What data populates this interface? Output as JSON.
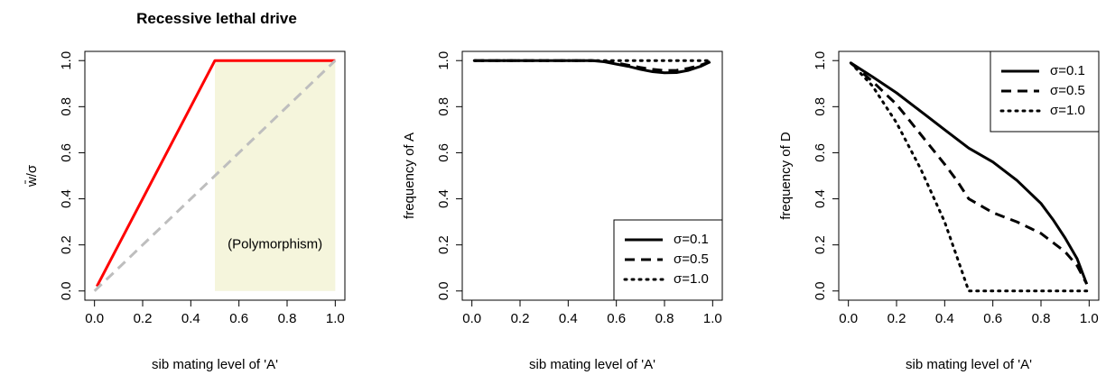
{
  "chart_data": [
    {
      "type": "line",
      "title": "Recessive lethal drive",
      "xlabel": "sib mating level of 'A'",
      "ylabel": "w̄/σ",
      "xlim": [
        0,
        1
      ],
      "ylim": [
        0,
        1
      ],
      "xticks": [
        "0.0",
        "0.2",
        "0.4",
        "0.6",
        "0.8",
        "1.0"
      ],
      "yticks": [
        "0.0",
        "0.2",
        "0.4",
        "0.6",
        "0.8",
        "1.0"
      ],
      "grid": false,
      "shaded_region": {
        "x": [
          0.5,
          1.0
        ],
        "y": [
          0,
          1
        ],
        "color": "#f5f5dc",
        "label": "(Polymorphism)"
      },
      "series": [
        {
          "style": "solid",
          "color": "#ff0000",
          "x": [
            0.01,
            0.5,
            1.0
          ],
          "y": [
            0.02,
            1.0,
            1.0
          ]
        },
        {
          "style": "dashed",
          "color": "#bebebe",
          "x": [
            0.0,
            1.0
          ],
          "y": [
            0.0,
            1.0
          ]
        }
      ]
    },
    {
      "type": "line",
      "title": "",
      "xlabel": "sib mating level of 'A'",
      "ylabel": "frequency of A",
      "xlim": [
        0,
        1
      ],
      "ylim": [
        0,
        1
      ],
      "xticks": [
        "0.0",
        "0.2",
        "0.4",
        "0.6",
        "0.8",
        "1.0"
      ],
      "yticks": [
        "0.0",
        "0.2",
        "0.4",
        "0.6",
        "0.8",
        "1.0"
      ],
      "grid": false,
      "legend": {
        "position": "bottom-right",
        "entries": [
          "σ=0.1",
          "σ=0.5",
          "σ=1.0"
        ]
      },
      "series": [
        {
          "name": "σ=0.1",
          "style": "solid",
          "x": [
            0.01,
            0.1,
            0.2,
            0.3,
            0.4,
            0.5,
            0.55,
            0.6,
            0.65,
            0.7,
            0.75,
            0.8,
            0.85,
            0.9,
            0.95,
            0.99
          ],
          "y": [
            1.0,
            1.0,
            1.0,
            1.0,
            1.0,
            1.0,
            0.995,
            0.985,
            0.975,
            0.962,
            0.952,
            0.947,
            0.948,
            0.958,
            0.975,
            0.995
          ]
        },
        {
          "name": "σ=0.5",
          "style": "dashed",
          "x": [
            0.01,
            0.1,
            0.2,
            0.3,
            0.4,
            0.5,
            0.55,
            0.6,
            0.65,
            0.7,
            0.75,
            0.8,
            0.85,
            0.9,
            0.95,
            0.99
          ],
          "y": [
            1.0,
            1.0,
            1.0,
            1.0,
            1.0,
            1.0,
            0.998,
            0.99,
            0.98,
            0.97,
            0.962,
            0.957,
            0.958,
            0.967,
            0.98,
            0.995
          ]
        },
        {
          "name": "σ=1.0",
          "style": "dotted",
          "x": [
            0.01,
            0.2,
            0.4,
            0.6,
            0.8,
            0.99
          ],
          "y": [
            1.0,
            1.0,
            1.0,
            1.0,
            1.0,
            1.0
          ]
        }
      ]
    },
    {
      "type": "line",
      "title": "",
      "xlabel": "sib mating level of 'A'",
      "ylabel": "frequency of D",
      "xlim": [
        0,
        1
      ],
      "ylim": [
        0,
        1
      ],
      "xticks": [
        "0.0",
        "0.2",
        "0.4",
        "0.6",
        "0.8",
        "1.0"
      ],
      "yticks": [
        "0.0",
        "0.2",
        "0.4",
        "0.6",
        "0.8",
        "1.0"
      ],
      "grid": false,
      "legend": {
        "position": "top-right",
        "entries": [
          "σ=0.1",
          "σ=0.5",
          "σ=1.0"
        ]
      },
      "series": [
        {
          "name": "σ=0.1",
          "style": "solid",
          "x": [
            0.01,
            0.1,
            0.2,
            0.3,
            0.4,
            0.5,
            0.6,
            0.7,
            0.8,
            0.85,
            0.9,
            0.95,
            0.99
          ],
          "y": [
            0.99,
            0.93,
            0.86,
            0.78,
            0.7,
            0.62,
            0.56,
            0.48,
            0.38,
            0.31,
            0.23,
            0.14,
            0.03
          ]
        },
        {
          "name": "σ=0.5",
          "style": "dashed",
          "x": [
            0.01,
            0.1,
            0.2,
            0.3,
            0.4,
            0.45,
            0.5,
            0.55,
            0.6,
            0.7,
            0.8,
            0.9,
            0.95,
            0.99
          ],
          "y": [
            0.99,
            0.91,
            0.81,
            0.68,
            0.55,
            0.48,
            0.4,
            0.37,
            0.34,
            0.3,
            0.25,
            0.17,
            0.11,
            0.03
          ]
        },
        {
          "name": "σ=1.0",
          "style": "dotted",
          "x": [
            0.01,
            0.1,
            0.2,
            0.3,
            0.4,
            0.45,
            0.5,
            0.6,
            0.7,
            0.8,
            0.9,
            0.99
          ],
          "y": [
            0.99,
            0.89,
            0.73,
            0.53,
            0.3,
            0.15,
            0.0,
            0.0,
            0.0,
            0.0,
            0.0,
            0.0
          ]
        }
      ]
    }
  ],
  "panel_annotation": "(Polymorphism)"
}
